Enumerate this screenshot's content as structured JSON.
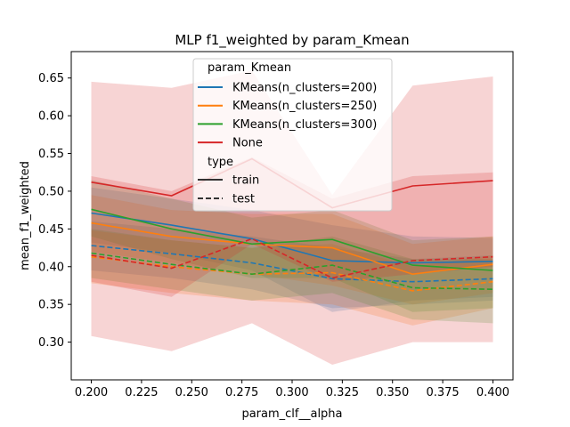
{
  "chart_data": {
    "type": "line",
    "title": "MLP f1_weighted by param_Kmean",
    "xlabel": "param_clf__alpha",
    "ylabel": "mean_f1_weighted",
    "x": [
      0.2,
      0.24,
      0.28,
      0.32,
      0.36,
      0.4
    ],
    "xlim": [
      0.19,
      0.41
    ],
    "ylim": [
      0.25,
      0.685
    ],
    "xticks": [
      0.2,
      0.225,
      0.25,
      0.275,
      0.3,
      0.325,
      0.35,
      0.375,
      0.4
    ],
    "xtick_labels": [
      "0.200",
      "0.225",
      "0.250",
      "0.275",
      "0.300",
      "0.325",
      "0.350",
      "0.375",
      "0.400"
    ],
    "yticks": [
      0.3,
      0.35,
      0.4,
      0.45,
      0.5,
      0.55,
      0.6,
      0.65
    ],
    "ytick_labels": [
      "0.30",
      "0.35",
      "0.40",
      "0.45",
      "0.50",
      "0.55",
      "0.60",
      "0.65"
    ],
    "grid": false,
    "legend_placement": "upper-center",
    "legend": {
      "hue_title": "param_Kmean",
      "style_title": "type",
      "style_entries": [
        {
          "label": "train",
          "dash": "solid"
        },
        {
          "label": "test",
          "dash": "dashed"
        }
      ]
    },
    "series": [
      {
        "name": "KMeans(n_clusters=200)",
        "type": "train",
        "color": "#1f77b4",
        "values": [
          0.471,
          0.455,
          0.437,
          0.408,
          0.405,
          0.407
        ],
        "lower": [
          0.432,
          0.418,
          0.395,
          0.34,
          0.355,
          0.36
        ],
        "upper": [
          0.505,
          0.49,
          0.475,
          0.455,
          0.44,
          0.438
        ]
      },
      {
        "name": "KMeans(n_clusters=200)",
        "type": "test",
        "color": "#1f77b4",
        "values": [
          0.428,
          0.417,
          0.405,
          0.384,
          0.38,
          0.384
        ],
        "lower": [
          0.395,
          0.385,
          0.37,
          0.345,
          0.35,
          0.355
        ],
        "upper": [
          0.46,
          0.45,
          0.44,
          0.425,
          0.41,
          0.415
        ]
      },
      {
        "name": "KMeans(n_clusters=250)",
        "type": "train",
        "color": "#ff7f0e",
        "values": [
          0.458,
          0.44,
          0.43,
          0.425,
          0.39,
          0.403
        ],
        "lower": [
          0.42,
          0.405,
          0.39,
          0.375,
          0.35,
          0.365
        ],
        "upper": [
          0.495,
          0.475,
          0.47,
          0.47,
          0.43,
          0.44
        ]
      },
      {
        "name": "KMeans(n_clusters=250)",
        "type": "test",
        "color": "#ff7f0e",
        "values": [
          0.413,
          0.4,
          0.39,
          0.392,
          0.368,
          0.38
        ],
        "lower": [
          0.378,
          0.365,
          0.355,
          0.35,
          0.322,
          0.345
        ],
        "upper": [
          0.448,
          0.435,
          0.425,
          0.43,
          0.4,
          0.415
        ]
      },
      {
        "name": "KMeans(n_clusters=300)",
        "type": "train",
        "color": "#2ca02c",
        "values": [
          0.476,
          0.45,
          0.43,
          0.436,
          0.402,
          0.395
        ],
        "lower": [
          0.44,
          0.41,
          0.385,
          0.385,
          0.34,
          0.345
        ],
        "upper": [
          0.515,
          0.49,
          0.465,
          0.475,
          0.435,
          0.44
        ]
      },
      {
        "name": "KMeans(n_clusters=300)",
        "type": "test",
        "color": "#2ca02c",
        "values": [
          0.418,
          0.403,
          0.39,
          0.402,
          0.372,
          0.37
        ],
        "lower": [
          0.385,
          0.37,
          0.355,
          0.365,
          0.33,
          0.325
        ],
        "upper": [
          0.45,
          0.435,
          0.425,
          0.44,
          0.41,
          0.41
        ]
      },
      {
        "name": "None",
        "type": "train",
        "color": "#d62728",
        "values": [
          0.512,
          0.494,
          0.543,
          0.478,
          0.507,
          0.514
        ],
        "lower": [
          0.38,
          0.36,
          0.43,
          0.38,
          0.39,
          0.4
        ],
        "upper": [
          0.645,
          0.637,
          0.66,
          0.495,
          0.64,
          0.652
        ]
      },
      {
        "name": "None",
        "type": "test",
        "color": "#d62728",
        "values": [
          0.415,
          0.398,
          0.437,
          0.385,
          0.408,
          0.413
        ],
        "lower": [
          0.308,
          0.288,
          0.325,
          0.27,
          0.3,
          0.3
        ],
        "upper": [
          0.52,
          0.5,
          0.545,
          0.49,
          0.52,
          0.525
        ]
      }
    ]
  }
}
